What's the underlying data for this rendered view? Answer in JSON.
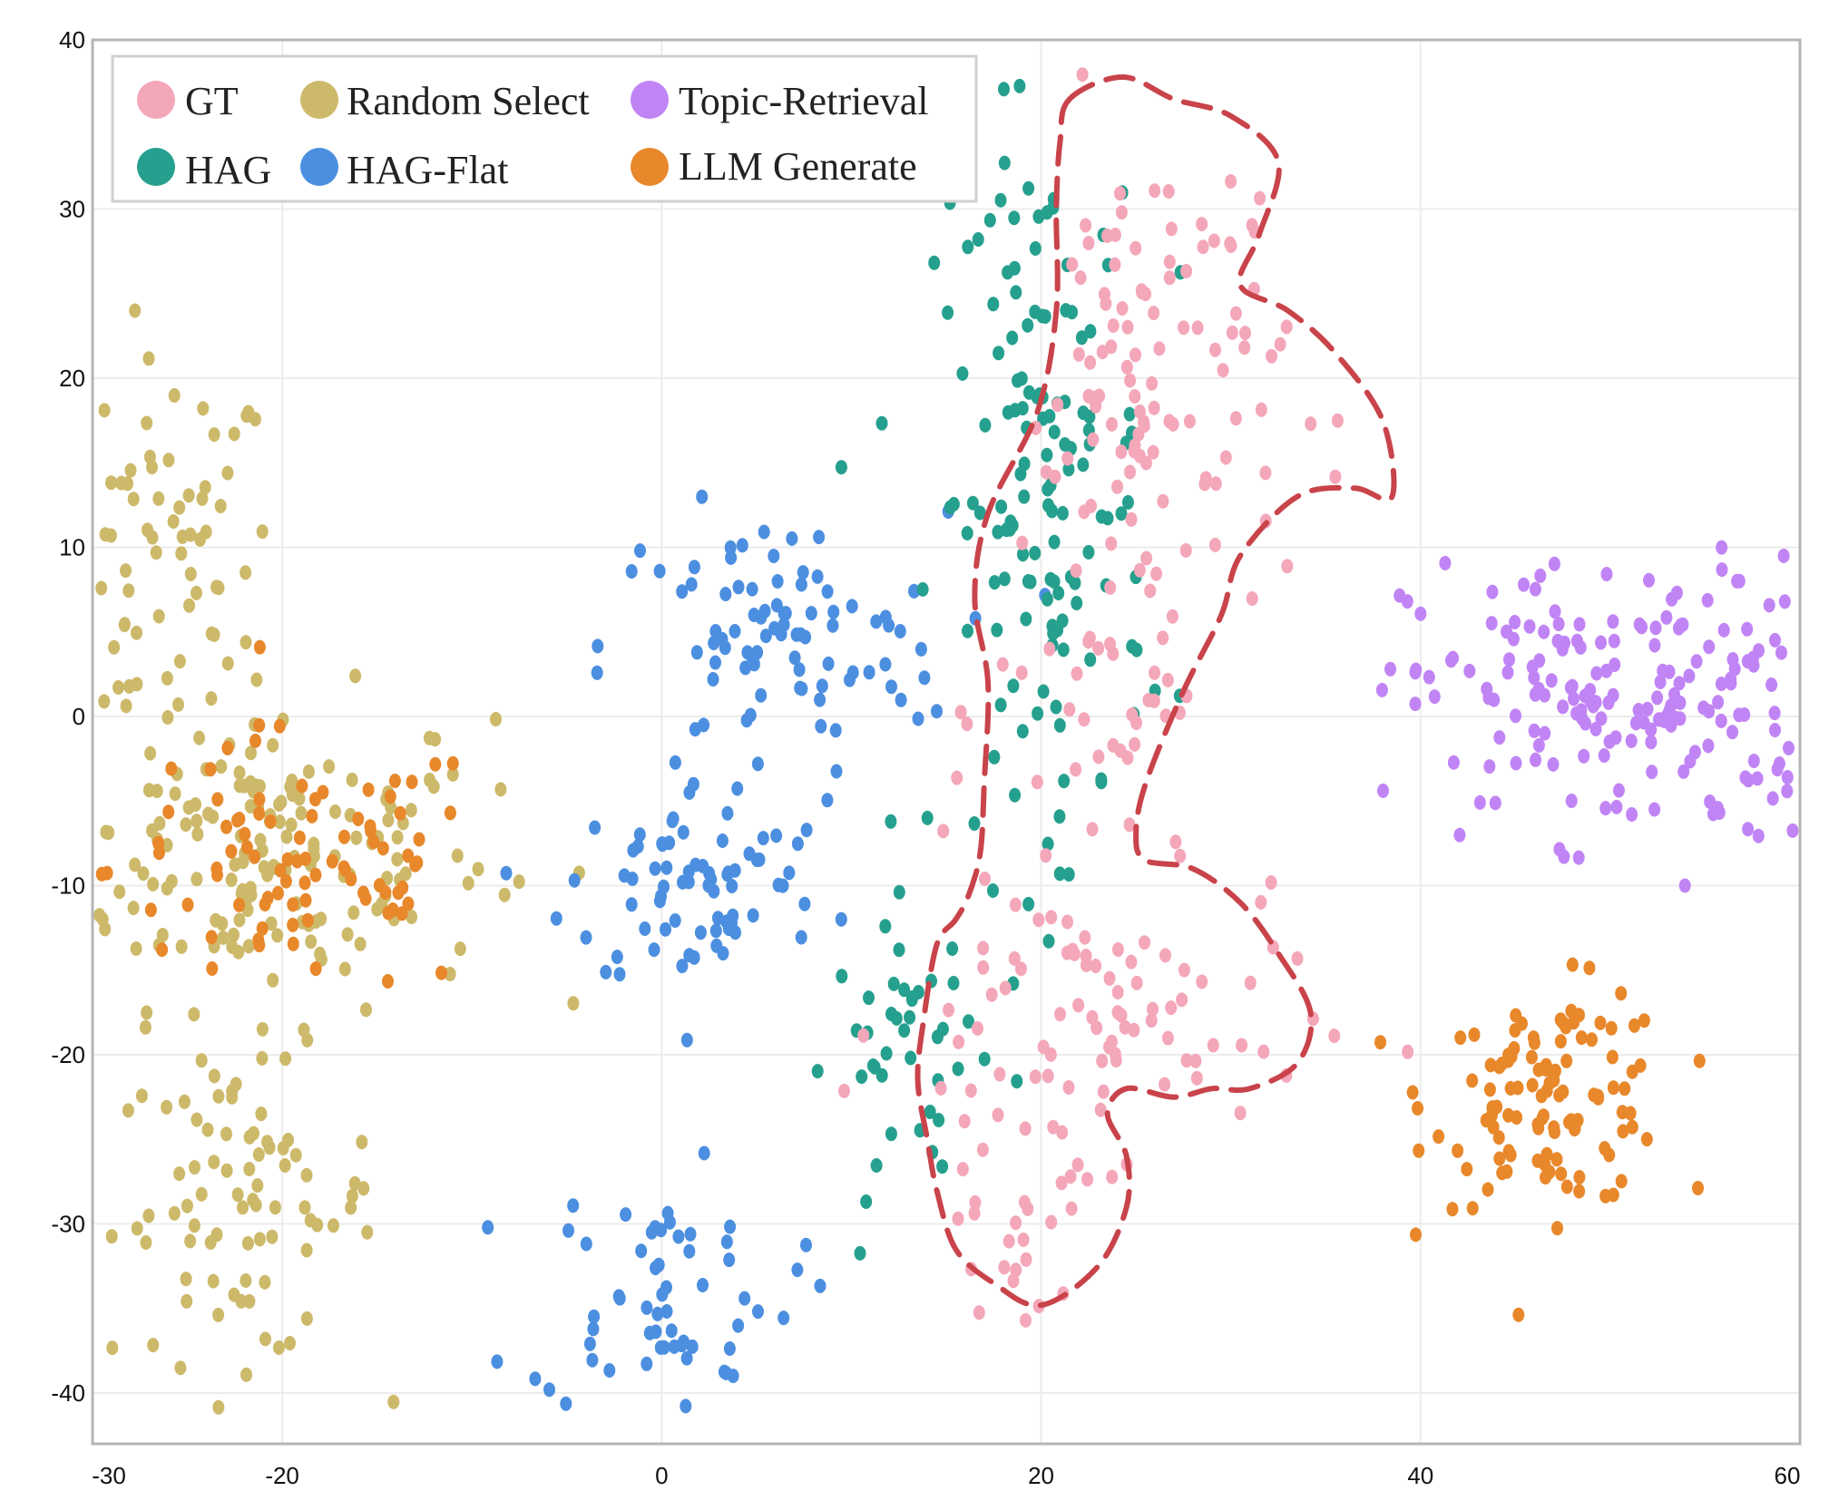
{
  "chart_data": {
    "type": "scatter",
    "title": "",
    "xlabel": "",
    "ylabel": "",
    "xlim": [
      -30,
      60
    ],
    "ylim": [
      -43,
      40
    ],
    "grid": true,
    "legend_position": "top-left",
    "x_ticks": [
      "-30",
      "-20",
      "0",
      "20",
      "40",
      "60"
    ],
    "y_ticks": [
      "40",
      "30",
      "20",
      "10",
      "0",
      "-10",
      "-20",
      "-30",
      "-40"
    ],
    "series": [
      {
        "name": "GT",
        "color": "#f4a7b9",
        "clusters": [
          {
            "cx": 26,
            "cy": 20,
            "sx": 3.5,
            "sy": 8,
            "n": 110
          },
          {
            "cx": 24,
            "cy": 0,
            "sx": 3.2,
            "sy": 6,
            "n": 40
          },
          {
            "cx": 23,
            "cy": -18,
            "sx": 5.5,
            "sy": 4.5,
            "n": 80
          },
          {
            "cx": 19,
            "cy": -29,
            "sx": 2.5,
            "sy": 3,
            "n": 30
          }
        ]
      },
      {
        "name": "Random Select",
        "color": "#cdb96a",
        "clusters": [
          {
            "cx": -26,
            "cy": 9,
            "sx": 2.8,
            "sy": 6,
            "n": 75
          },
          {
            "cx": -21,
            "cy": -8,
            "sx": 6,
            "sy": 4.5,
            "n": 170
          },
          {
            "cx": -22,
            "cy": -29,
            "sx": 3.5,
            "sy": 4.5,
            "n": 85
          }
        ]
      },
      {
        "name": "Topic-Retrieval",
        "color": "#c184f5",
        "clusters": [
          {
            "cx": 51,
            "cy": 1,
            "sx": 5.8,
            "sy": 4.2,
            "n": 200
          }
        ]
      },
      {
        "name": "HAG",
        "color": "#26a08e",
        "clusters": [
          {
            "cx": 20,
            "cy": 13,
            "sx": 2.8,
            "sy": 11,
            "n": 150
          },
          {
            "cx": 13,
            "cy": -20,
            "sx": 2,
            "sy": 4,
            "n": 40
          }
        ]
      },
      {
        "name": "HAG-Flat",
        "color": "#4c8fe0",
        "clusters": [
          {
            "cx": 6,
            "cy": 4,
            "sx": 4.5,
            "sy": 4,
            "n": 90
          },
          {
            "cx": 2,
            "cy": -10,
            "sx": 3.5,
            "sy": 3.2,
            "n": 75
          },
          {
            "cx": 0,
            "cy": -34,
            "sx": 3.5,
            "sy": 3.5,
            "n": 60
          }
        ]
      },
      {
        "name": "LLM Generate",
        "color": "#e8882b",
        "clusters": [
          {
            "cx": -19,
            "cy": -9,
            "sx": 5,
            "sy": 4,
            "n": 90
          },
          {
            "cx": 47,
            "cy": -22.5,
            "sx": 3.2,
            "sy": 3.2,
            "n": 115
          }
        ]
      }
    ],
    "annotation": {
      "shape": "dashed-outline",
      "color": "#c9434a",
      "encloses": "GT"
    }
  }
}
